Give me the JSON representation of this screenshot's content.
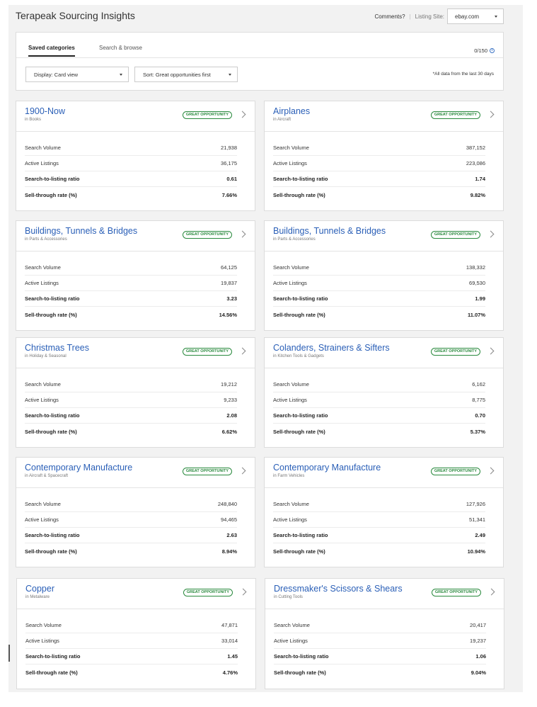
{
  "header": {
    "title": "Terapeak Sourcing Insights",
    "comments": "Comments?",
    "separator": "|",
    "listing_site_label": "Listing Site:",
    "listing_site_value": "ebay.com"
  },
  "controls": {
    "tabs": [
      {
        "label": "Saved categories",
        "active": true
      },
      {
        "label": "Search & browse",
        "active": false
      }
    ],
    "counter": "0/150",
    "info_icon": "info-icon",
    "display_dropdown": "Display: Card view",
    "sort_dropdown": "Sort: Great opportunities first",
    "note": "*All data from the last 30 days"
  },
  "labels": {
    "search_volume": "Search Volume",
    "active_listings": "Active Listings",
    "ratio": "Search-to-listing ratio",
    "sell_through": "Sell-through rate (%)"
  },
  "cards": [
    {
      "title": "1900-Now",
      "sub": "in Books",
      "badge": "GREAT OPPORTUNITY",
      "search_volume": "21,938",
      "active_listings": "36,175",
      "ratio": "0.61",
      "sell_through": "7.66%"
    },
    {
      "title": "Airplanes",
      "sub": "in Aircraft",
      "badge": "GREAT OPPORTUNITY",
      "search_volume": "387,152",
      "active_listings": "223,086",
      "ratio": "1.74",
      "sell_through": "9.82%"
    },
    {
      "title": "Buildings, Tunnels & Bridges",
      "sub": "in Parts & Accessories",
      "badge": "GREAT OPPORTUNITY",
      "search_volume": "64,125",
      "active_listings": "19,837",
      "ratio": "3.23",
      "sell_through": "14.56%"
    },
    {
      "title": "Buildings, Tunnels & Bridges",
      "sub": "in Parts & Accessories",
      "badge": "GREAT OPPORTUNITY",
      "search_volume": "138,332",
      "active_listings": "69,530",
      "ratio": "1.99",
      "sell_through": "11.07%"
    },
    {
      "title": "Christmas Trees",
      "sub": "in Holiday & Seasonal",
      "badge": "GREAT OPPORTUNITY",
      "search_volume": "19,212",
      "active_listings": "9,233",
      "ratio": "2.08",
      "sell_through": "6.62%"
    },
    {
      "title": "Colanders, Strainers & Sifters",
      "sub": "in Kitchen Tools & Gadgets",
      "badge": "GREAT OPPORTUNITY",
      "search_volume": "6,162",
      "active_listings": "8,775",
      "ratio": "0.70",
      "sell_through": "5.37%"
    },
    {
      "title": "Contemporary Manufacture",
      "sub": "in Aircraft & Spacecraft",
      "badge": "GREAT OPPORTUNITY",
      "search_volume": "248,840",
      "active_listings": "94,465",
      "ratio": "2.63",
      "sell_through": "8.94%"
    },
    {
      "title": "Contemporary Manufacture",
      "sub": "in Farm Vehicles",
      "badge": "GREAT OPPORTUNITY",
      "search_volume": "127,926",
      "active_listings": "51,341",
      "ratio": "2.49",
      "sell_through": "10.94%"
    },
    {
      "title": "Copper",
      "sub": "in Metalware",
      "badge": "GREAT OPPORTUNITY",
      "search_volume": "47,871",
      "active_listings": "33,014",
      "ratio": "1.45",
      "sell_through": "4.76%"
    },
    {
      "title": "Dressmaker's Scissors & Shears",
      "sub": "in Cutting Tools",
      "badge": "GREAT OPPORTUNITY",
      "search_volume": "20,417",
      "active_listings": "19,237",
      "ratio": "1.06",
      "sell_through": "9.04%"
    }
  ]
}
